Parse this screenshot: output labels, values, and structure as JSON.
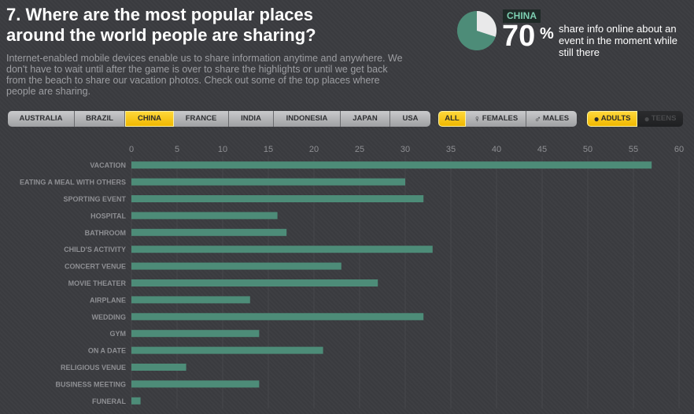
{
  "header": {
    "title_line1": "7. Where are the most popular places",
    "title_line2": "around the world people are sharing?",
    "intro": "Internet-enabled mobile devices enable us to share information anytime and anywhere. We don't have to wait until after the game is over to share the highlights or until we get back from the beach to share our vacation photos. Check out some of the top places where people are sharing."
  },
  "stat": {
    "country": "CHINA",
    "percent": "70",
    "percent_sign": "%",
    "percent_value": 70,
    "text": "share info online about an event in the moment while still there",
    "pie_color": "#4d8c78",
    "pie_rest_color": "#3b3c40"
  },
  "country_tabs": [
    {
      "label": "AUSTRALIA",
      "active": false
    },
    {
      "label": "BRAZIL",
      "active": false
    },
    {
      "label": "CHINA",
      "active": true
    },
    {
      "label": "FRANCE",
      "active": false
    },
    {
      "label": "INDIA",
      "active": false
    },
    {
      "label": "INDONESIA",
      "active": false
    },
    {
      "label": "JAPAN",
      "active": false
    },
    {
      "label": "USA",
      "active": false
    }
  ],
  "gender_tabs": [
    {
      "label": "ALL",
      "icon": "",
      "active": true
    },
    {
      "label": "FEMALES",
      "icon": "female-icon",
      "active": false
    },
    {
      "label": "MALES",
      "icon": "male-icon",
      "active": false
    }
  ],
  "age_tabs": [
    {
      "label": "ADULTS",
      "icon": "adult-person-icon",
      "active": true
    },
    {
      "label": "TEENS",
      "icon": "teen-person-icon",
      "active": false
    }
  ],
  "colors": {
    "bar": "#4d8c78",
    "active_tab": "#f5c400",
    "background": "#3b3c40"
  },
  "chart_data": {
    "type": "bar",
    "orientation": "horizontal",
    "title": "",
    "xlabel": "",
    "ylabel": "",
    "xlim": [
      0,
      60
    ],
    "ticks": [
      0,
      5,
      10,
      15,
      20,
      25,
      30,
      35,
      40,
      45,
      50,
      55,
      60
    ],
    "grid": true,
    "categories": [
      "VACATION",
      "EATING A MEAL WITH OTHERS",
      "SPORTING EVENT",
      "HOSPITAL",
      "BATHROOM",
      "CHILD'S ACTIVITY",
      "CONCERT VENUE",
      "MOVIE THEATER",
      "AIRPLANE",
      "WEDDING",
      "GYM",
      "ON A DATE",
      "RELIGIOUS VENUE",
      "BUSINESS MEETING",
      "FUNERAL"
    ],
    "values": [
      57,
      30,
      32,
      16,
      17,
      33,
      23,
      27,
      13,
      32,
      14,
      21,
      6,
      14,
      1
    ]
  }
}
